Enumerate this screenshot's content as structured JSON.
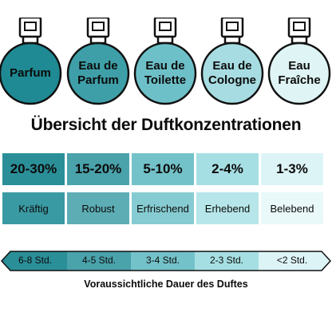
{
  "colors": {
    "parfum": "#1f8a93",
    "eau_de_parfum": "#3e9fa8",
    "eau_de_toilette": "#6ec0c8",
    "eau_de_cologne": "#a7dde2",
    "eau_fraiche": "#dff4f5",
    "row_pct": [
      "#2b8f98",
      "#4aa2ab",
      "#74c2c9",
      "#a6dfe3",
      "#ddf4f6"
    ],
    "row_desc": [
      "#3a9aa3",
      "#5dadb5",
      "#86cbd1",
      "#b6e6e9",
      "#e9f8f9"
    ],
    "arrow_segments": [
      "#2b8f98",
      "#4aa2ab",
      "#74c2c9",
      "#a6dfe3",
      "#ddf4f6"
    ]
  },
  "bottles": [
    {
      "line1": "Parfum",
      "line2": "",
      "icon": "perfume-bottle-icon"
    },
    {
      "line1": "Eau de",
      "line2": "Parfum",
      "icon": "perfume-bottle-icon"
    },
    {
      "line1": "Eau de",
      "line2": "Toilette",
      "icon": "perfume-bottle-icon"
    },
    {
      "line1": "Eau de",
      "line2": "Cologne",
      "icon": "perfume-bottle-icon"
    },
    {
      "line1": "Eau",
      "line2": "Fraîche",
      "icon": "perfume-bottle-icon"
    }
  ],
  "title": "Übersicht der Duftkonzentrationen",
  "concentrations": [
    {
      "pct": "20-30%",
      "desc": "Kräftig"
    },
    {
      "pct": "15-20%",
      "desc": "Robust"
    },
    {
      "pct": "5-10%",
      "desc": "Erfrischend"
    },
    {
      "pct": "2-4%",
      "desc": "Erhebend"
    },
    {
      "pct": "1-3%",
      "desc": "Belebend"
    }
  ],
  "durations": [
    "6-8 Std.",
    "4-5 Std.",
    "3-4 Std.",
    "2-3 Std.",
    "<2 Std."
  ],
  "footer": "Voraussichtliche Dauer des Duftes"
}
